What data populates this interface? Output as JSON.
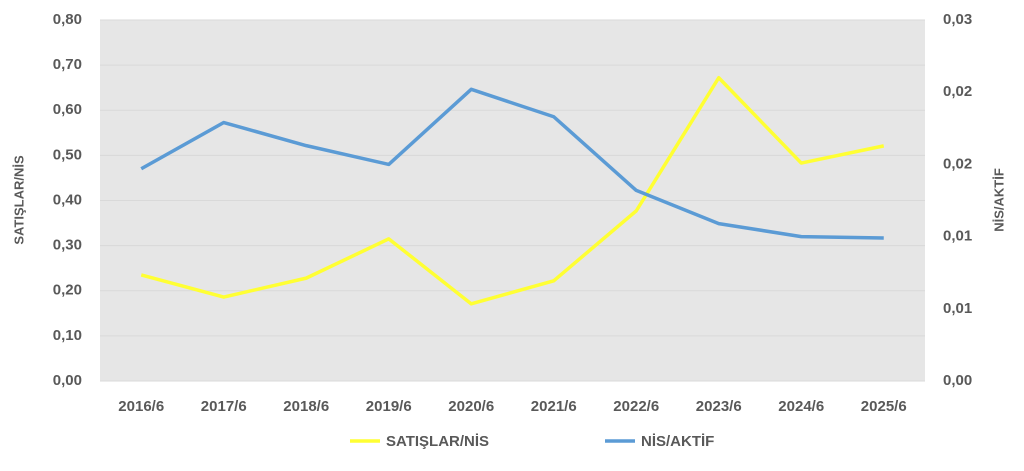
{
  "chart_data": {
    "type": "line",
    "categories": [
      "2016/6",
      "2017/6",
      "2018/6",
      "2019/6",
      "2020/6",
      "2021/6",
      "2022/6",
      "2023/6",
      "2024/6",
      "2025/6"
    ],
    "series": [
      {
        "name": "SATIŞLAR/NİS",
        "color": "#ffff33",
        "values": [
          0.235,
          0.186,
          0.228,
          0.315,
          0.171,
          0.222,
          0.377,
          0.672,
          0.483,
          0.521
        ]
      },
      {
        "name": "NİS/AKTİF",
        "color": "#5b9bd5",
        "axis": "y2",
        "values": [
          0.0147,
          0.0179,
          0.0163,
          0.015,
          0.0202,
          0.0183,
          0.0132,
          0.0109,
          0.01,
          0.0099
        ]
      }
    ],
    "ylabel": "SATIŞLAR/NİS",
    "y2label": "NİS/AKTİF",
    "ylim": [
      0,
      0.8
    ],
    "yticks": [
      {
        "value": 0,
        "label": "0,00"
      },
      {
        "value": 0.1,
        "label": "0,10"
      },
      {
        "value": 0.2,
        "label": "0,20"
      },
      {
        "value": 0.3,
        "label": "0,30"
      },
      {
        "value": 0.4,
        "label": "0,40"
      },
      {
        "value": 0.5,
        "label": "0,50"
      },
      {
        "value": 0.6,
        "label": "0,60"
      },
      {
        "value": 0.7,
        "label": "0,70"
      },
      {
        "value": 0.8,
        "label": "0,80"
      }
    ],
    "y2lim": [
      0,
      0.025
    ],
    "y2ticks": [
      {
        "value": 0,
        "label": "0,00"
      },
      {
        "value": 0.005,
        "label": "0,01"
      },
      {
        "value": 0.01,
        "label": "0,01"
      },
      {
        "value": 0.015,
        "label": "0,02"
      },
      {
        "value": 0.02,
        "label": "0,02"
      },
      {
        "value": 0.025,
        "label": "0,03"
      }
    ],
    "grid": true,
    "legend": "bottom"
  }
}
